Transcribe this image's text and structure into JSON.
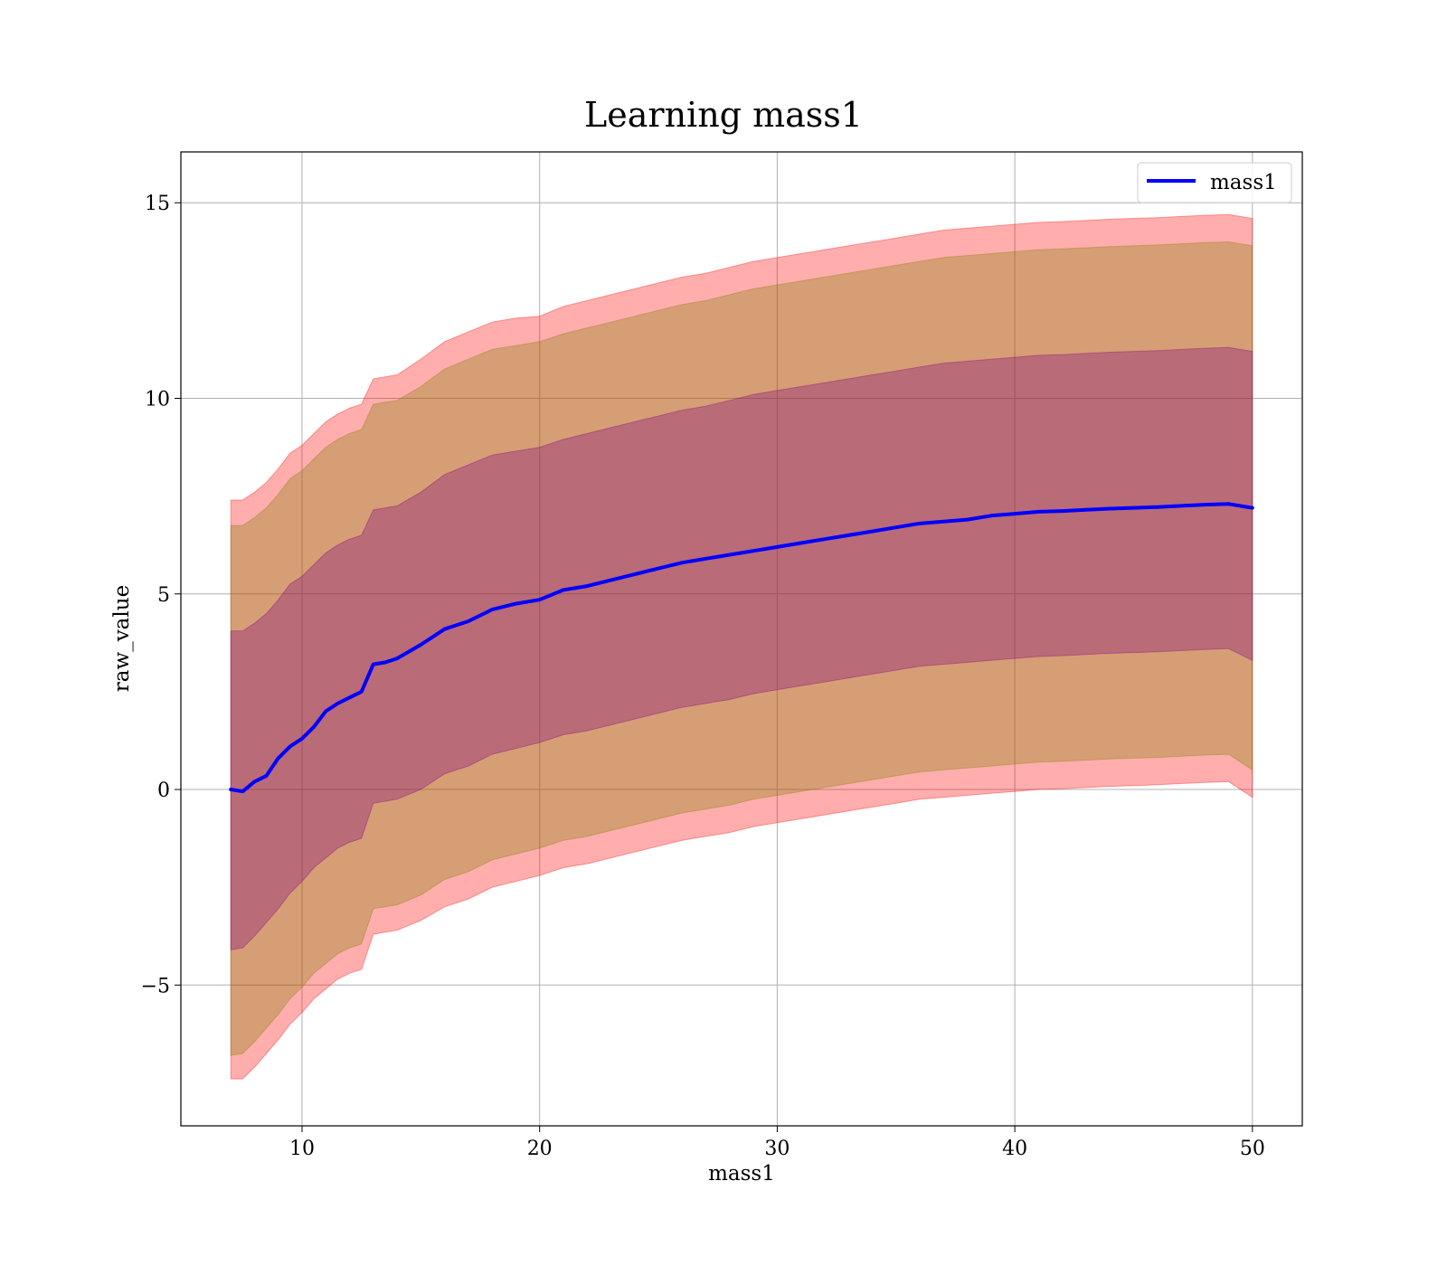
{
  "chart_data": {
    "type": "line",
    "title": "Learning mass1",
    "xlabel": "mass1",
    "ylabel": "raw_value",
    "xlim": [
      4.9,
      52.1
    ],
    "ylim": [
      -8.6,
      16.3
    ],
    "xticks": [
      10,
      20,
      30,
      40,
      50
    ],
    "yticks": [
      -5,
      0,
      5,
      10,
      15
    ],
    "xtick_labels": [
      "10",
      "20",
      "30",
      "40",
      "50"
    ],
    "ytick_labels": [
      "−5",
      "0",
      "5",
      "10",
      "15"
    ],
    "grid": true,
    "legend_position": "top-right",
    "series": [
      {
        "name": "mass1",
        "color": "#0000ff",
        "x": [
          7,
          7.5,
          8,
          8.5,
          9,
          9.5,
          10,
          10.5,
          11,
          11.5,
          12,
          12.5,
          13,
          13.5,
          14,
          15,
          16,
          17,
          18,
          19,
          20,
          21,
          22,
          23,
          24,
          25,
          26,
          27,
          28,
          29,
          30,
          31,
          32,
          33,
          34,
          35,
          36,
          37,
          38,
          39,
          40,
          41,
          42,
          43,
          44,
          45,
          46,
          47,
          48,
          49,
          50
        ],
        "values": [
          0.0,
          -0.05,
          0.2,
          0.35,
          0.8,
          1.1,
          1.3,
          1.6,
          2.0,
          2.2,
          2.35,
          2.5,
          3.2,
          3.25,
          3.35,
          3.7,
          4.1,
          4.3,
          4.6,
          4.75,
          4.85,
          5.1,
          5.2,
          5.35,
          5.5,
          5.65,
          5.8,
          5.9,
          6.0,
          6.1,
          6.2,
          6.3,
          6.4,
          6.5,
          6.6,
          6.7,
          6.8,
          6.85,
          6.9,
          7.0,
          7.05,
          7.1,
          7.12,
          7.15,
          7.18,
          7.2,
          7.22,
          7.25,
          7.28,
          7.3,
          7.2
        ]
      }
    ],
    "bands": [
      {
        "name": "outer",
        "color": "#ff0000",
        "opacity": 0.32,
        "x": [
          7,
          7.5,
          8,
          8.5,
          9,
          9.5,
          10,
          10.5,
          11,
          11.5,
          12,
          12.5,
          13,
          13.5,
          14,
          15,
          16,
          17,
          18,
          19,
          20,
          21,
          22,
          23,
          24,
          25,
          26,
          27,
          28,
          29,
          30,
          31,
          32,
          33,
          34,
          35,
          36,
          37,
          38,
          39,
          40,
          41,
          42,
          43,
          44,
          45,
          46,
          47,
          48,
          49,
          50
        ],
        "lower": [
          -7.4,
          -7.4,
          -7.1,
          -6.75,
          -6.4,
          -6.0,
          -5.7,
          -5.35,
          -5.1,
          -4.85,
          -4.7,
          -4.6,
          -3.7,
          -3.65,
          -3.6,
          -3.35,
          -3.0,
          -2.8,
          -2.5,
          -2.35,
          -2.2,
          -2.0,
          -1.9,
          -1.75,
          -1.6,
          -1.45,
          -1.3,
          -1.2,
          -1.1,
          -0.95,
          -0.85,
          -0.75,
          -0.65,
          -0.55,
          -0.45,
          -0.35,
          -0.25,
          -0.2,
          -0.15,
          -0.1,
          -0.05,
          0.0,
          0.02,
          0.05,
          0.08,
          0.1,
          0.12,
          0.15,
          0.18,
          0.2,
          -0.2
        ],
        "upper": [
          7.4,
          7.4,
          7.6,
          7.85,
          8.2,
          8.6,
          8.8,
          9.1,
          9.4,
          9.6,
          9.75,
          9.85,
          10.5,
          10.55,
          10.6,
          11.0,
          11.45,
          11.7,
          11.95,
          12.05,
          12.1,
          12.35,
          12.5,
          12.65,
          12.8,
          12.95,
          13.1,
          13.2,
          13.35,
          13.5,
          13.6,
          13.7,
          13.8,
          13.9,
          14.0,
          14.1,
          14.2,
          14.3,
          14.35,
          14.4,
          14.45,
          14.5,
          14.52,
          14.55,
          14.58,
          14.6,
          14.62,
          14.65,
          14.68,
          14.7,
          14.6
        ]
      },
      {
        "name": "middle",
        "color": "#808000",
        "opacity": 0.32,
        "x": [
          7,
          7.5,
          8,
          8.5,
          9,
          9.5,
          10,
          10.5,
          11,
          11.5,
          12,
          12.5,
          13,
          13.5,
          14,
          15,
          16,
          17,
          18,
          19,
          20,
          21,
          22,
          23,
          24,
          25,
          26,
          27,
          28,
          29,
          30,
          31,
          32,
          33,
          34,
          35,
          36,
          37,
          38,
          39,
          40,
          41,
          42,
          43,
          44,
          45,
          46,
          47,
          48,
          49,
          50
        ],
        "lower": [
          -6.8,
          -6.75,
          -6.45,
          -6.1,
          -5.75,
          -5.35,
          -5.05,
          -4.7,
          -4.45,
          -4.2,
          -4.05,
          -3.95,
          -3.05,
          -3.0,
          -2.95,
          -2.7,
          -2.3,
          -2.1,
          -1.8,
          -1.65,
          -1.5,
          -1.3,
          -1.2,
          -1.05,
          -0.9,
          -0.75,
          -0.6,
          -0.5,
          -0.4,
          -0.25,
          -0.15,
          -0.05,
          0.05,
          0.15,
          0.25,
          0.35,
          0.45,
          0.5,
          0.55,
          0.6,
          0.65,
          0.7,
          0.72,
          0.75,
          0.78,
          0.8,
          0.82,
          0.85,
          0.88,
          0.9,
          0.5
        ],
        "upper": [
          6.75,
          6.75,
          6.95,
          7.2,
          7.55,
          7.95,
          8.15,
          8.45,
          8.75,
          8.95,
          9.1,
          9.2,
          9.85,
          9.9,
          9.95,
          10.3,
          10.75,
          11.0,
          11.25,
          11.35,
          11.45,
          11.65,
          11.8,
          11.95,
          12.1,
          12.25,
          12.4,
          12.5,
          12.65,
          12.8,
          12.9,
          13.0,
          13.1,
          13.2,
          13.3,
          13.4,
          13.5,
          13.6,
          13.65,
          13.7,
          13.75,
          13.8,
          13.82,
          13.85,
          13.88,
          13.9,
          13.92,
          13.95,
          13.98,
          14.0,
          13.9
        ]
      },
      {
        "name": "inner",
        "color": "#800080",
        "opacity": 0.32,
        "x": [
          7,
          7.5,
          8,
          8.5,
          9,
          9.5,
          10,
          10.5,
          11,
          11.5,
          12,
          12.5,
          13,
          13.5,
          14,
          15,
          16,
          17,
          18,
          19,
          20,
          21,
          22,
          23,
          24,
          25,
          26,
          27,
          28,
          29,
          30,
          31,
          32,
          33,
          34,
          35,
          36,
          37,
          38,
          39,
          40,
          41,
          42,
          43,
          44,
          45,
          46,
          47,
          48,
          49,
          50
        ],
        "lower": [
          -4.1,
          -4.05,
          -3.75,
          -3.4,
          -3.05,
          -2.65,
          -2.35,
          -2.0,
          -1.75,
          -1.5,
          -1.35,
          -1.25,
          -0.35,
          -0.3,
          -0.25,
          0.0,
          0.4,
          0.6,
          0.9,
          1.05,
          1.2,
          1.4,
          1.5,
          1.65,
          1.8,
          1.95,
          2.1,
          2.2,
          2.3,
          2.45,
          2.55,
          2.65,
          2.75,
          2.85,
          2.95,
          3.05,
          3.15,
          3.2,
          3.25,
          3.3,
          3.35,
          3.4,
          3.42,
          3.45,
          3.48,
          3.5,
          3.52,
          3.55,
          3.58,
          3.6,
          3.3
        ],
        "upper": [
          4.05,
          4.05,
          4.25,
          4.5,
          4.85,
          5.25,
          5.45,
          5.75,
          6.05,
          6.25,
          6.4,
          6.5,
          7.15,
          7.2,
          7.25,
          7.6,
          8.05,
          8.3,
          8.55,
          8.65,
          8.75,
          8.95,
          9.1,
          9.25,
          9.4,
          9.55,
          9.7,
          9.8,
          9.95,
          10.1,
          10.2,
          10.3,
          10.4,
          10.5,
          10.6,
          10.7,
          10.8,
          10.9,
          10.95,
          11.0,
          11.05,
          11.1,
          11.12,
          11.15,
          11.18,
          11.2,
          11.22,
          11.25,
          11.28,
          11.3,
          11.2
        ]
      }
    ]
  }
}
